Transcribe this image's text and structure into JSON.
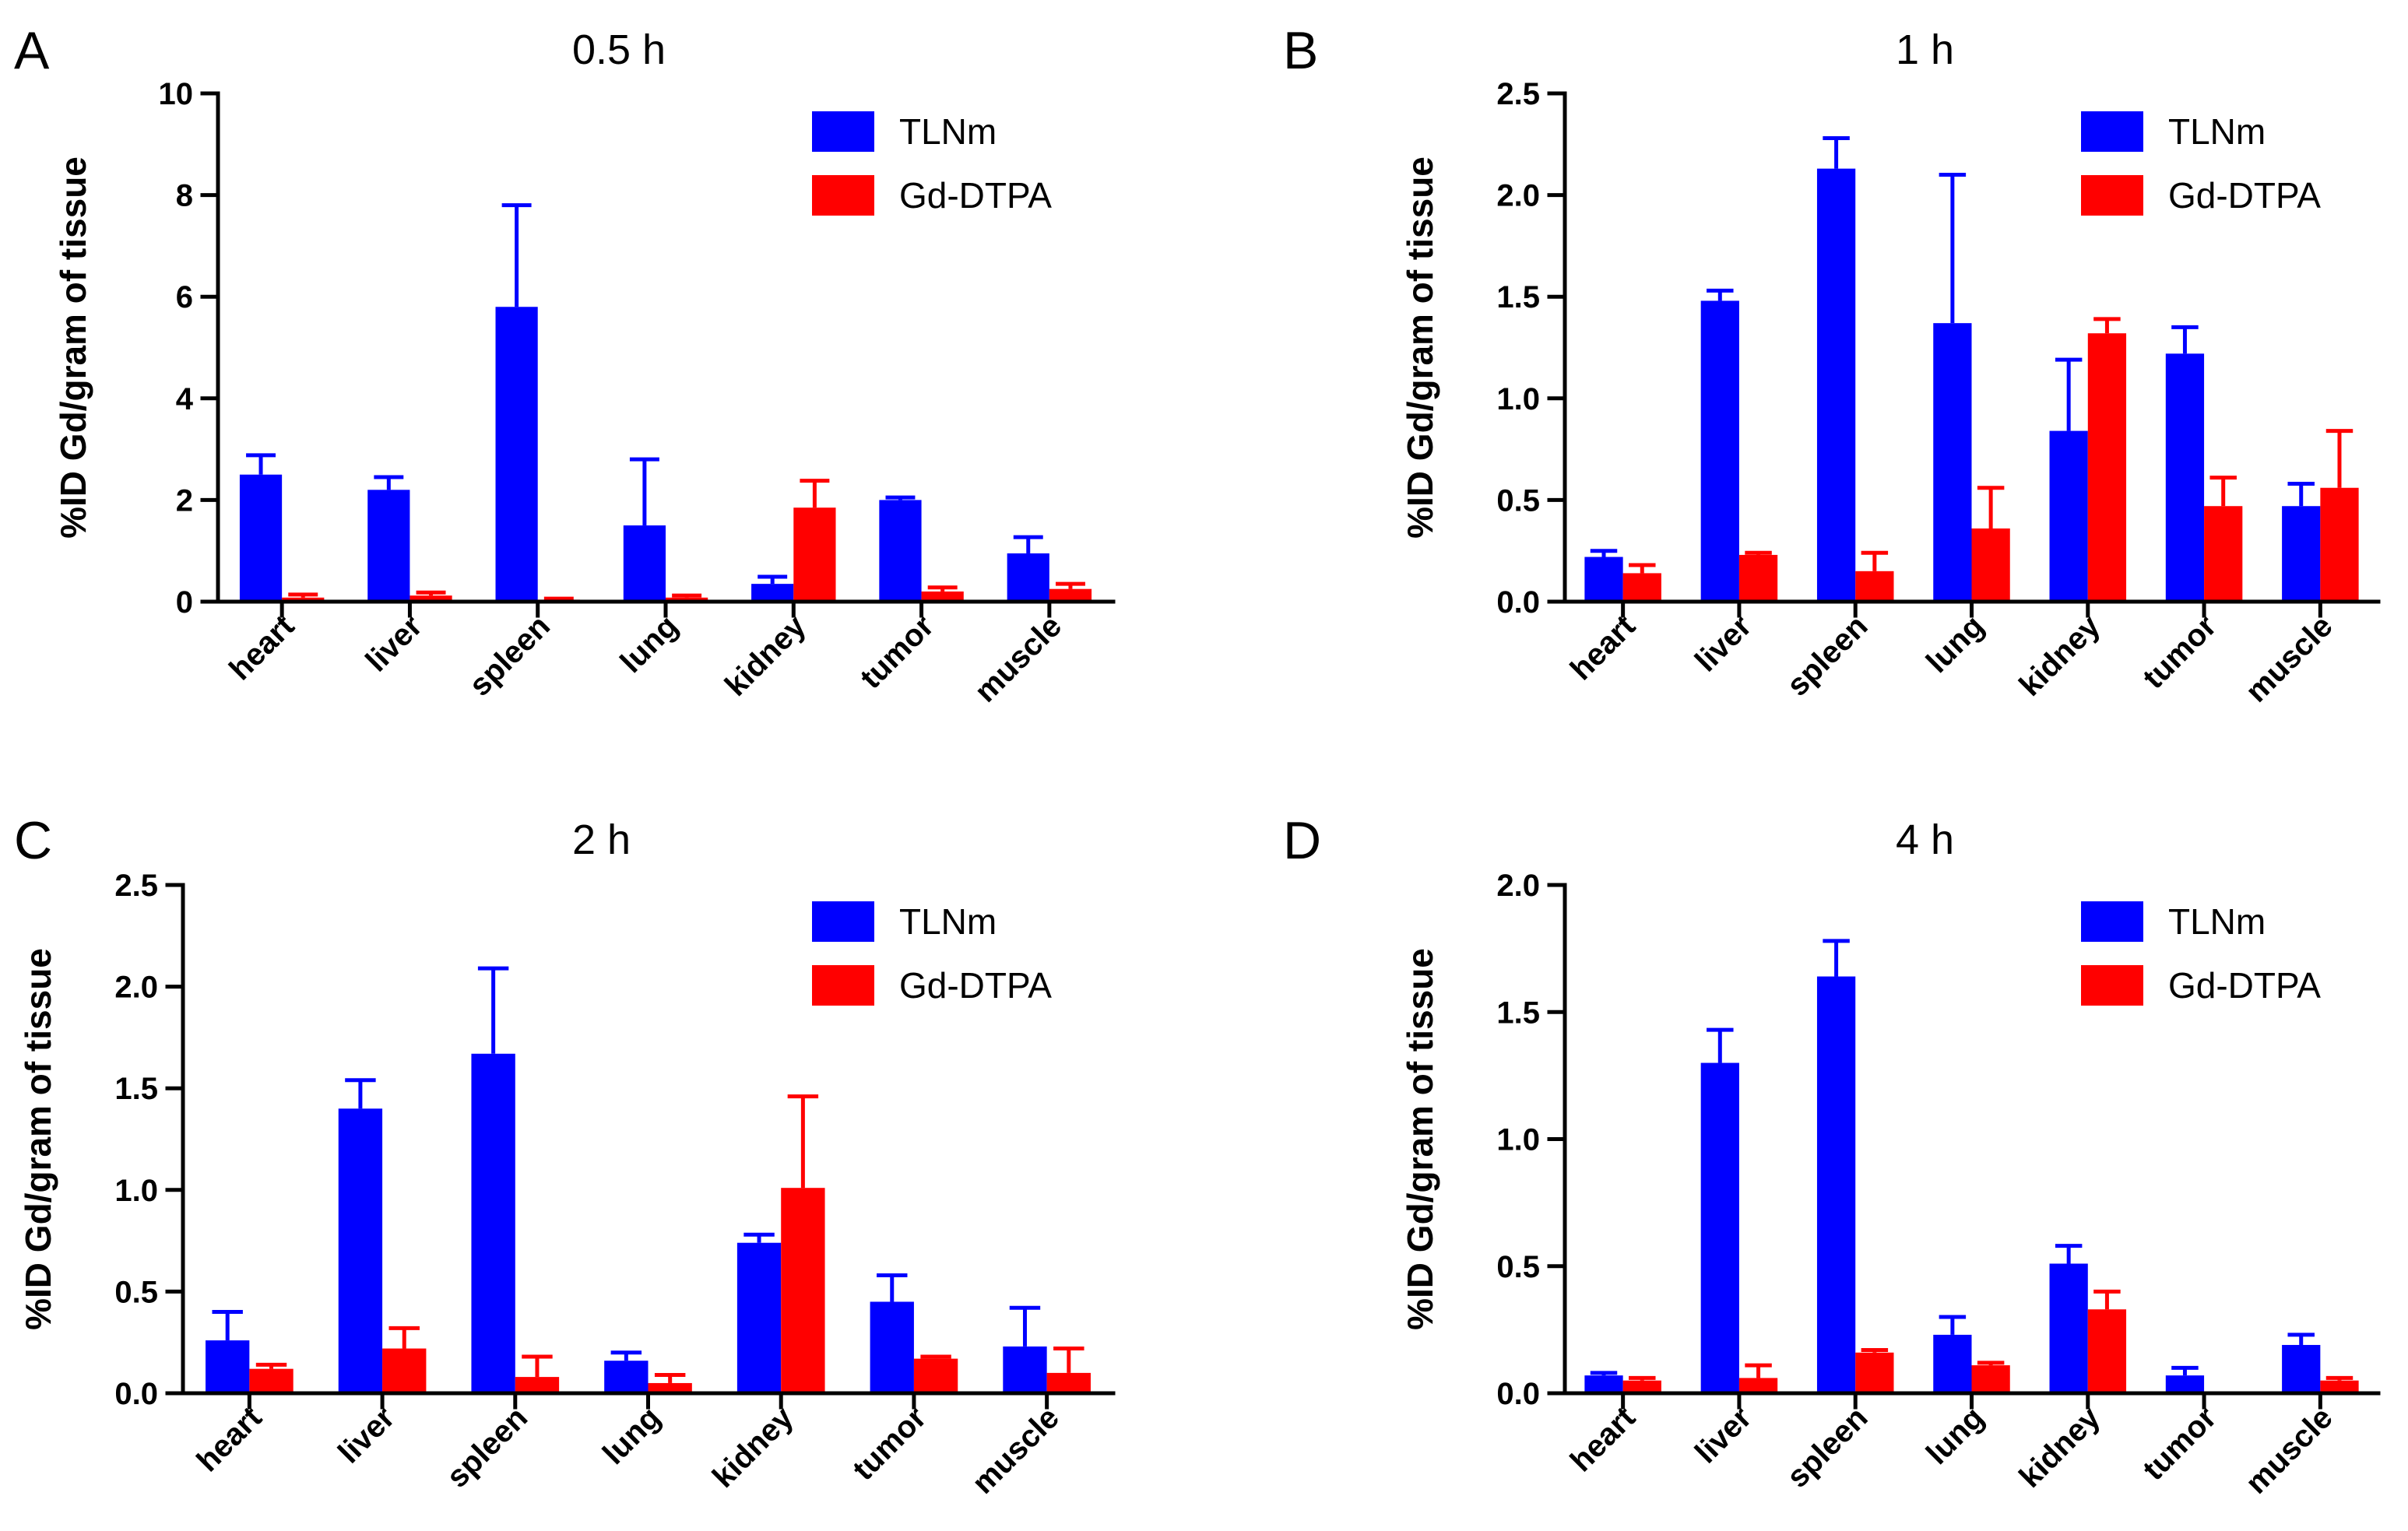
{
  "colors": {
    "TLNm": "#0000ff",
    "Gd-DTPA": "#ff0000",
    "axis": "#000000"
  },
  "chart_data": [
    {
      "type": "bar",
      "panel": "A",
      "title": "0.5 h",
      "ylabel": "%ID Gd/gram of tissue",
      "xlabel": "",
      "ylim": [
        0,
        10
      ],
      "yticks": [
        "0",
        "2",
        "4",
        "6",
        "8",
        "10"
      ],
      "categories": [
        "heart",
        "liver",
        "spleen",
        "lung",
        "kidney",
        "tumor",
        "muscle"
      ],
      "legend": "top-right",
      "series": [
        {
          "name": "TLNm",
          "values": [
            2.5,
            2.2,
            5.8,
            1.5,
            0.35,
            2.0,
            0.95
          ],
          "errors": [
            0.38,
            0.25,
            2.0,
            1.3,
            0.14,
            0.05,
            0.32
          ]
        },
        {
          "name": "Gd-DTPA",
          "values": [
            0.08,
            0.12,
            0.04,
            0.08,
            1.85,
            0.2,
            0.25
          ],
          "errors": [
            0.06,
            0.06,
            0.02,
            0.04,
            0.53,
            0.08,
            0.1
          ]
        }
      ]
    },
    {
      "type": "bar",
      "panel": "B",
      "title": "1 h",
      "ylabel": "%ID Gd/gram of tissue",
      "xlabel": "",
      "ylim": [
        0,
        2.5
      ],
      "yticks": [
        "0.0",
        "0.5",
        "1.0",
        "1.5",
        "2.0",
        "2.5"
      ],
      "categories": [
        "heart",
        "liver",
        "spleen",
        "lung",
        "kidney",
        "tumor",
        "muscle"
      ],
      "legend": "top-right",
      "series": [
        {
          "name": "TLNm",
          "values": [
            0.22,
            1.48,
            2.13,
            1.37,
            0.84,
            1.22,
            0.47
          ],
          "errors": [
            0.03,
            0.05,
            0.15,
            0.73,
            0.35,
            0.13,
            0.11
          ]
        },
        {
          "name": "Gd-DTPA",
          "values": [
            0.14,
            0.23,
            0.15,
            0.36,
            1.32,
            0.47,
            0.56
          ],
          "errors": [
            0.04,
            0.01,
            0.09,
            0.2,
            0.07,
            0.14,
            0.28
          ]
        }
      ]
    },
    {
      "type": "bar",
      "panel": "C",
      "title": "2 h",
      "ylabel": "%ID Gd/gram of tissue",
      "xlabel": "",
      "ylim": [
        0,
        2.5
      ],
      "yticks": [
        "0.0",
        "0.5",
        "1.0",
        "1.5",
        "2.0",
        "2.5"
      ],
      "categories": [
        "heart",
        "liver",
        "spleen",
        "lung",
        "kidney",
        "tumor",
        "muscle"
      ],
      "legend": "top-right",
      "series": [
        {
          "name": "TLNm",
          "values": [
            0.26,
            1.4,
            1.67,
            0.16,
            0.74,
            0.45,
            0.23
          ],
          "errors": [
            0.14,
            0.14,
            0.42,
            0.04,
            0.04,
            0.13,
            0.19
          ]
        },
        {
          "name": "Gd-DTPA",
          "values": [
            0.12,
            0.22,
            0.08,
            0.05,
            1.01,
            0.17,
            0.1
          ],
          "errors": [
            0.02,
            0.1,
            0.1,
            0.04,
            0.45,
            0.01,
            0.12
          ]
        }
      ]
    },
    {
      "type": "bar",
      "panel": "D",
      "title": "4 h",
      "ylabel": "%ID Gd/gram of tissue",
      "xlabel": "",
      "ylim": [
        0,
        2.0
      ],
      "yticks": [
        "0.0",
        "0.5",
        "1.0",
        "1.5",
        "2.0"
      ],
      "categories": [
        "heart",
        "liver",
        "spleen",
        "lung",
        "kidney",
        "tumor",
        "muscle"
      ],
      "legend": "top-right",
      "series": [
        {
          "name": "TLNm",
          "values": [
            0.07,
            1.3,
            1.64,
            0.23,
            0.51,
            0.07,
            0.19
          ],
          "errors": [
            0.01,
            0.13,
            0.14,
            0.07,
            0.07,
            0.03,
            0.04
          ]
        },
        {
          "name": "Gd-DTPA",
          "values": [
            0.05,
            0.06,
            0.16,
            0.11,
            0.33,
            0.0,
            0.05
          ],
          "errors": [
            0.01,
            0.05,
            0.01,
            0.01,
            0.07,
            0.0,
            0.01
          ]
        }
      ]
    }
  ]
}
